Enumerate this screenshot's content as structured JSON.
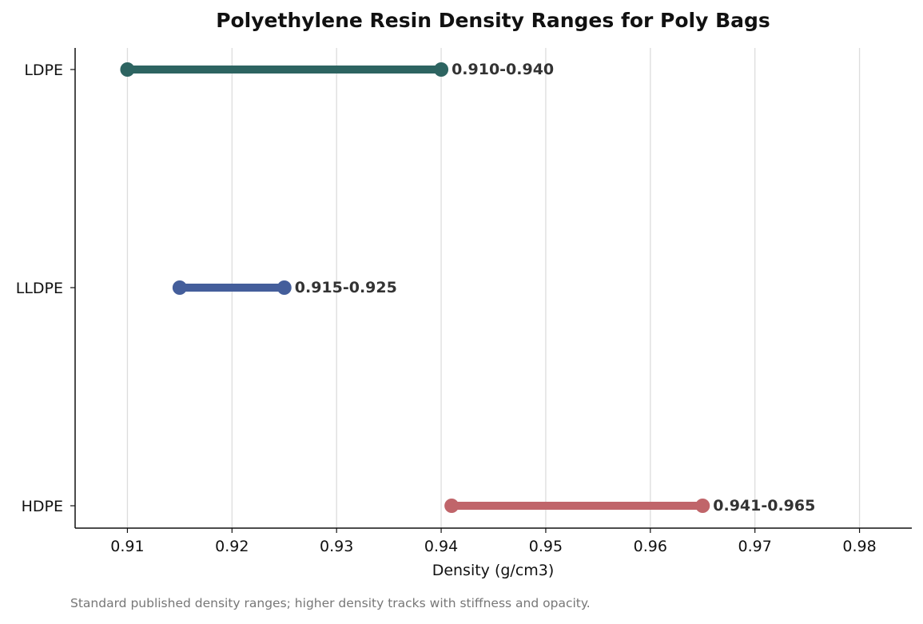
{
  "chart_data": {
    "type": "range",
    "title": "Polyethylene Resin Density Ranges for Poly Bags",
    "xlabel": "Density (g/cm3)",
    "ylabel": "",
    "xlim": [
      0.905,
      0.985
    ],
    "xticks": [
      "0.91",
      "0.92",
      "0.93",
      "0.94",
      "0.95",
      "0.96",
      "0.97",
      "0.98"
    ],
    "xtick_values": [
      0.91,
      0.92,
      0.93,
      0.94,
      0.95,
      0.96,
      0.97,
      0.98
    ],
    "grid": "vertical",
    "caption": "Standard published density ranges; higher density tracks with stiffness and opacity.",
    "series": [
      {
        "name": "LDPE",
        "low": 0.91,
        "high": 0.94,
        "label": "0.910-0.940",
        "color": "#2d6461"
      },
      {
        "name": "LLDPE",
        "low": 0.915,
        "high": 0.925,
        "label": "0.915-0.925",
        "color": "#445e9b"
      },
      {
        "name": "HDPE",
        "low": 0.941,
        "high": 0.965,
        "label": "0.941-0.965",
        "color": "#c0656a"
      }
    ]
  }
}
